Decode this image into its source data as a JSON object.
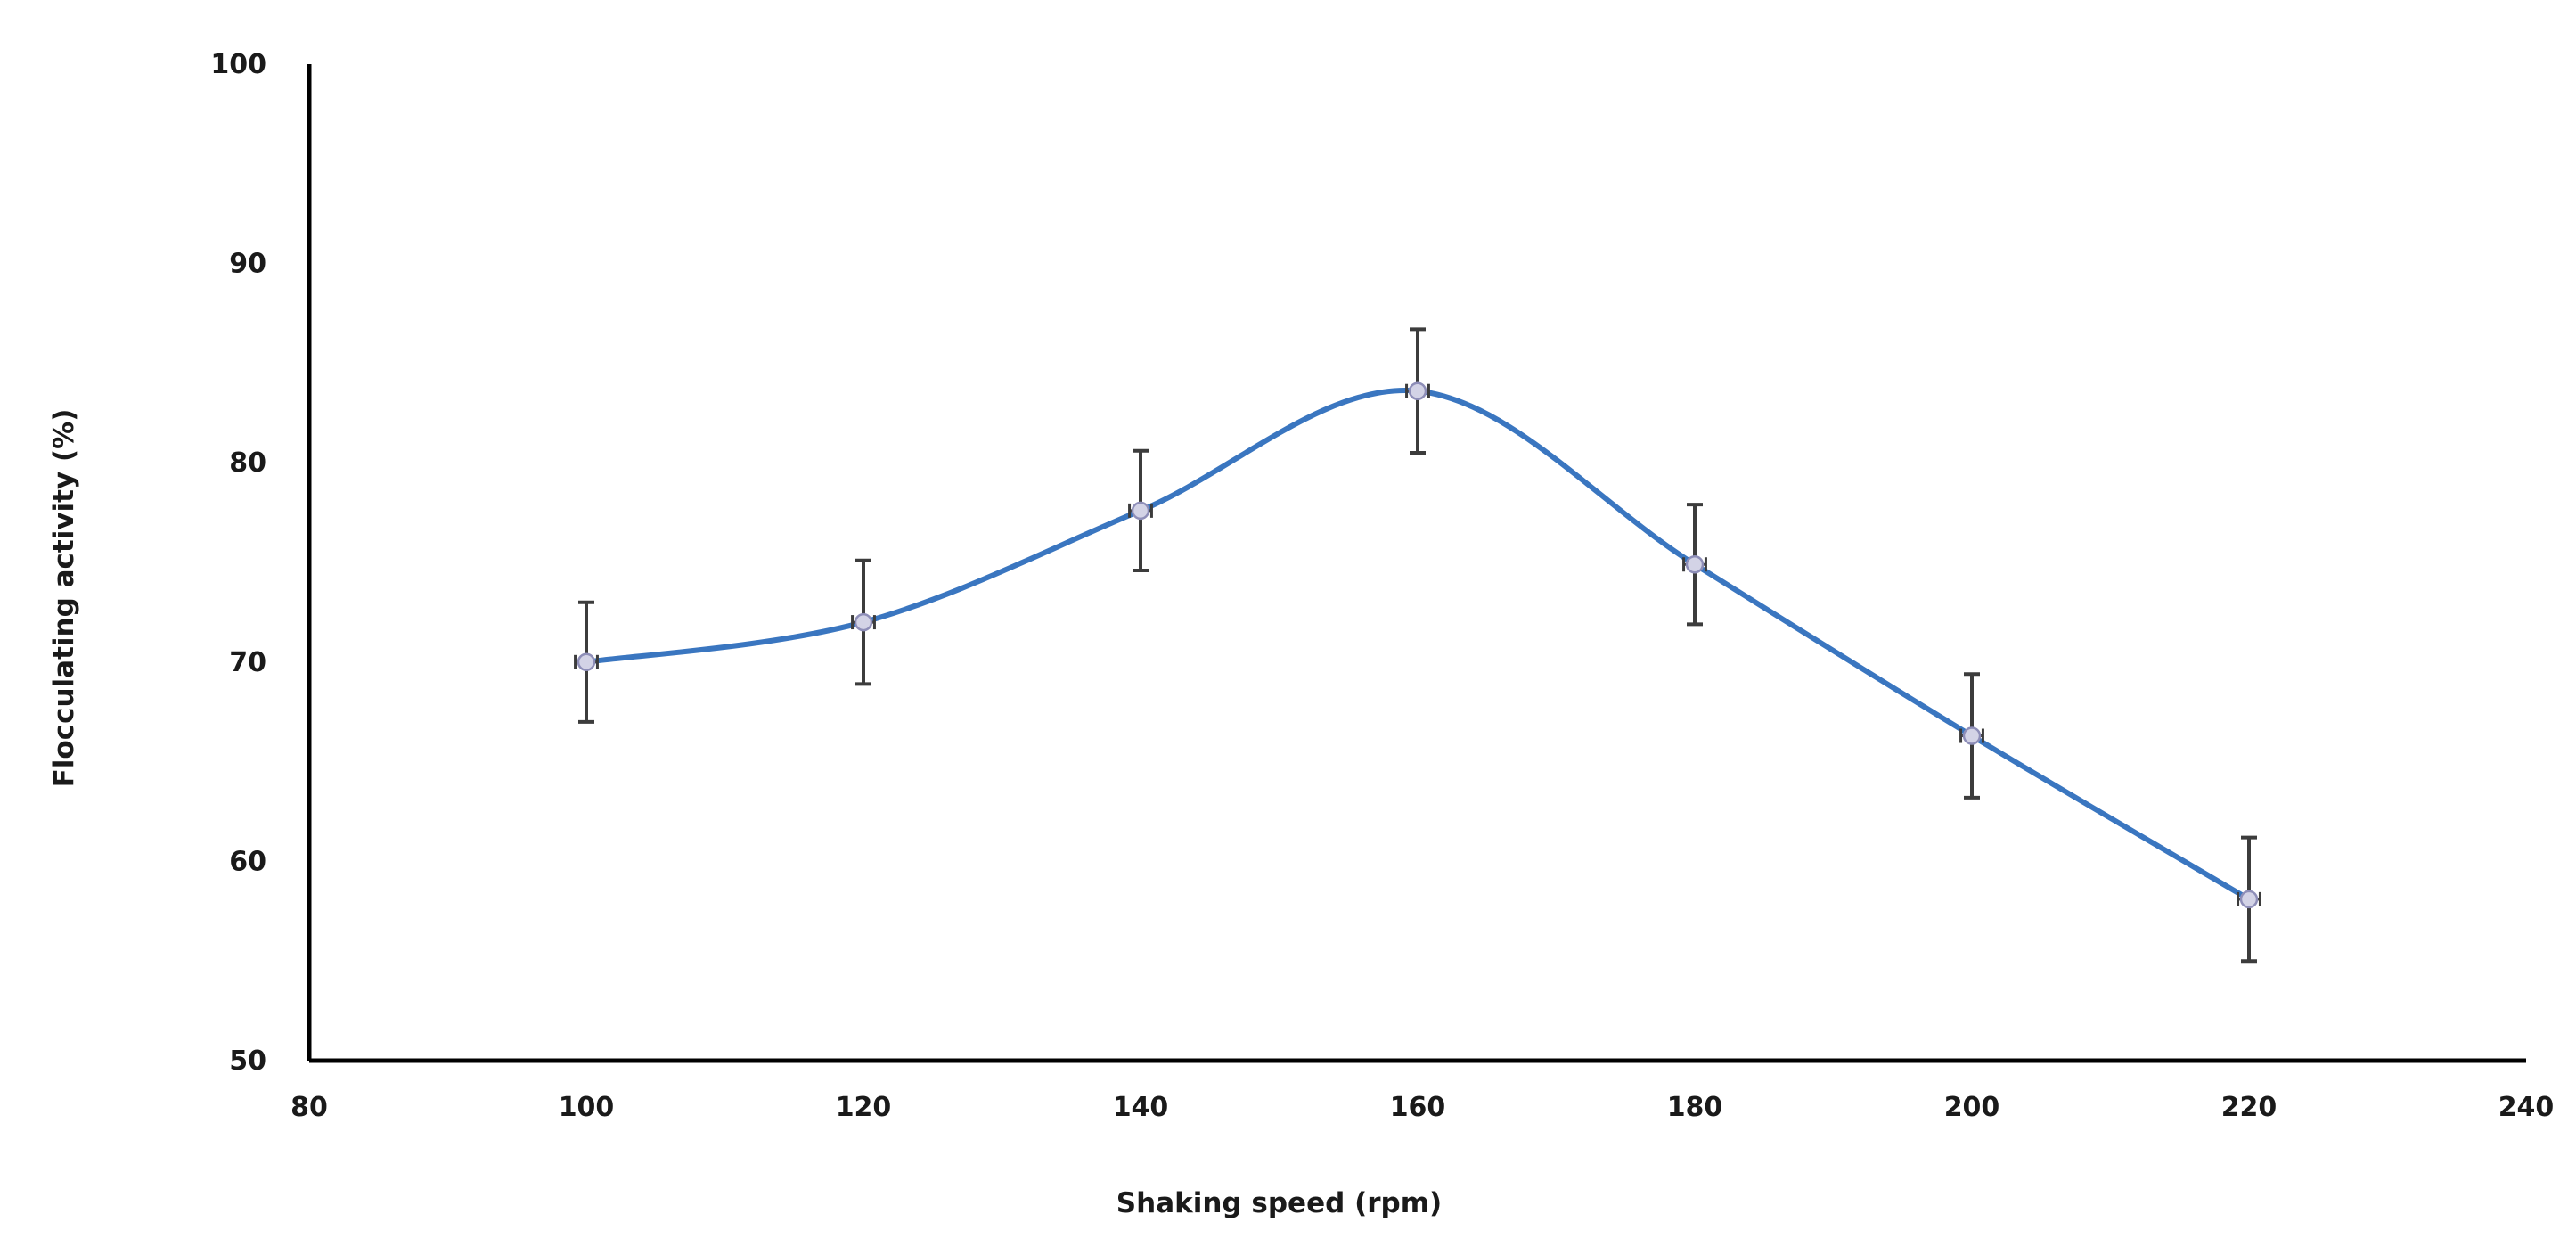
{
  "chart_data": {
    "type": "line",
    "smooth": true,
    "title": "",
    "xlabel": "Shaking speed (rpm)",
    "ylabel": "Flocculating activity (%)",
    "xlim": [
      80,
      240
    ],
    "ylim": [
      50,
      100
    ],
    "xticks": [
      "80",
      "100",
      "120",
      "140",
      "160",
      "180",
      "200",
      "220",
      "240"
    ],
    "yticks": [
      "50",
      "60",
      "70",
      "80",
      "90",
      "100"
    ],
    "series": [
      {
        "name": "Flocculating activity",
        "color": "#3a76c0",
        "x": [
          100,
          120,
          140,
          160,
          180,
          200,
          220
        ],
        "y": [
          70.0,
          72.0,
          77.6,
          83.6,
          74.9,
          66.3,
          58.1
        ],
        "y_error": [
          3.0,
          3.1,
          3.0,
          3.1,
          3.0,
          3.1,
          3.1
        ],
        "x_error": [
          0.8,
          0.8,
          0.8,
          0.8,
          0.8,
          0.8,
          0.8
        ]
      }
    ],
    "grid": false,
    "legend": "none"
  }
}
